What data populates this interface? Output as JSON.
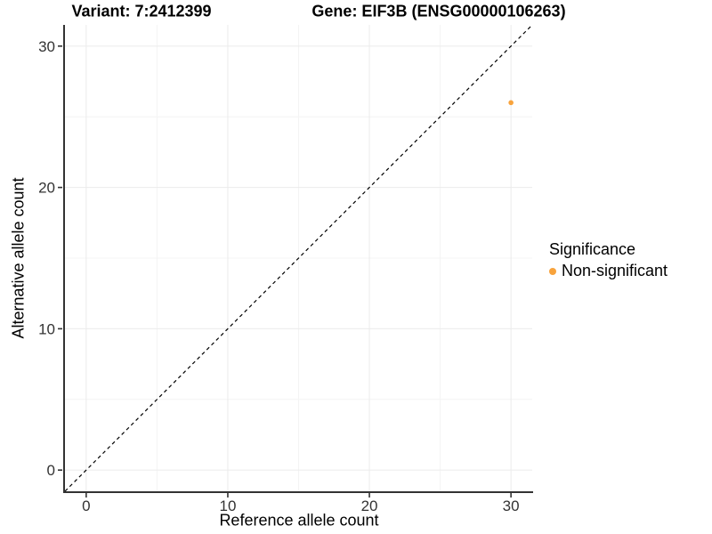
{
  "figure": {
    "title_left": "Variant: 7:2412399",
    "title_right": "Gene: EIF3B (ENSG00000106263)"
  },
  "legend": {
    "title": "Significance",
    "items": [
      {
        "label": "Non-significant",
        "color": "#F8A33C"
      }
    ]
  },
  "chart_data": {
    "type": "scatter",
    "title": "Variant: 7:2412399   |   Gene: EIF3B (ENSG00000106263)",
    "xlabel": "Reference allele count",
    "ylabel": "Alternative allele count",
    "xlim": [
      -1.5,
      31.5
    ],
    "ylim": [
      -1.5,
      31.5
    ],
    "x_ticks": [
      0,
      10,
      20,
      30
    ],
    "y_ticks": [
      0,
      10,
      20,
      30
    ],
    "x_minor_ticks": [
      5,
      15,
      25
    ],
    "y_minor_ticks": [
      5,
      15,
      25
    ],
    "grid": true,
    "legend_position": "right",
    "legend_title": "Significance",
    "series": [
      {
        "name": "Non-significant",
        "color": "#F8A33C",
        "points": [
          {
            "x": 30,
            "y": 26
          }
        ]
      }
    ],
    "reference_line": {
      "type": "identity",
      "x1": -1.5,
      "y1": -1.5,
      "x2": 31.5,
      "y2": 31.5,
      "style": "dashed",
      "color": "#000000"
    },
    "style": {
      "axis_line_color": "#333333",
      "tick_color": "#333333",
      "tick_label_color": "#333333",
      "grid_major_color": "#EBEBEB",
      "grid_minor_color": "#F4F4F4",
      "background": "#FFFFFF"
    }
  }
}
